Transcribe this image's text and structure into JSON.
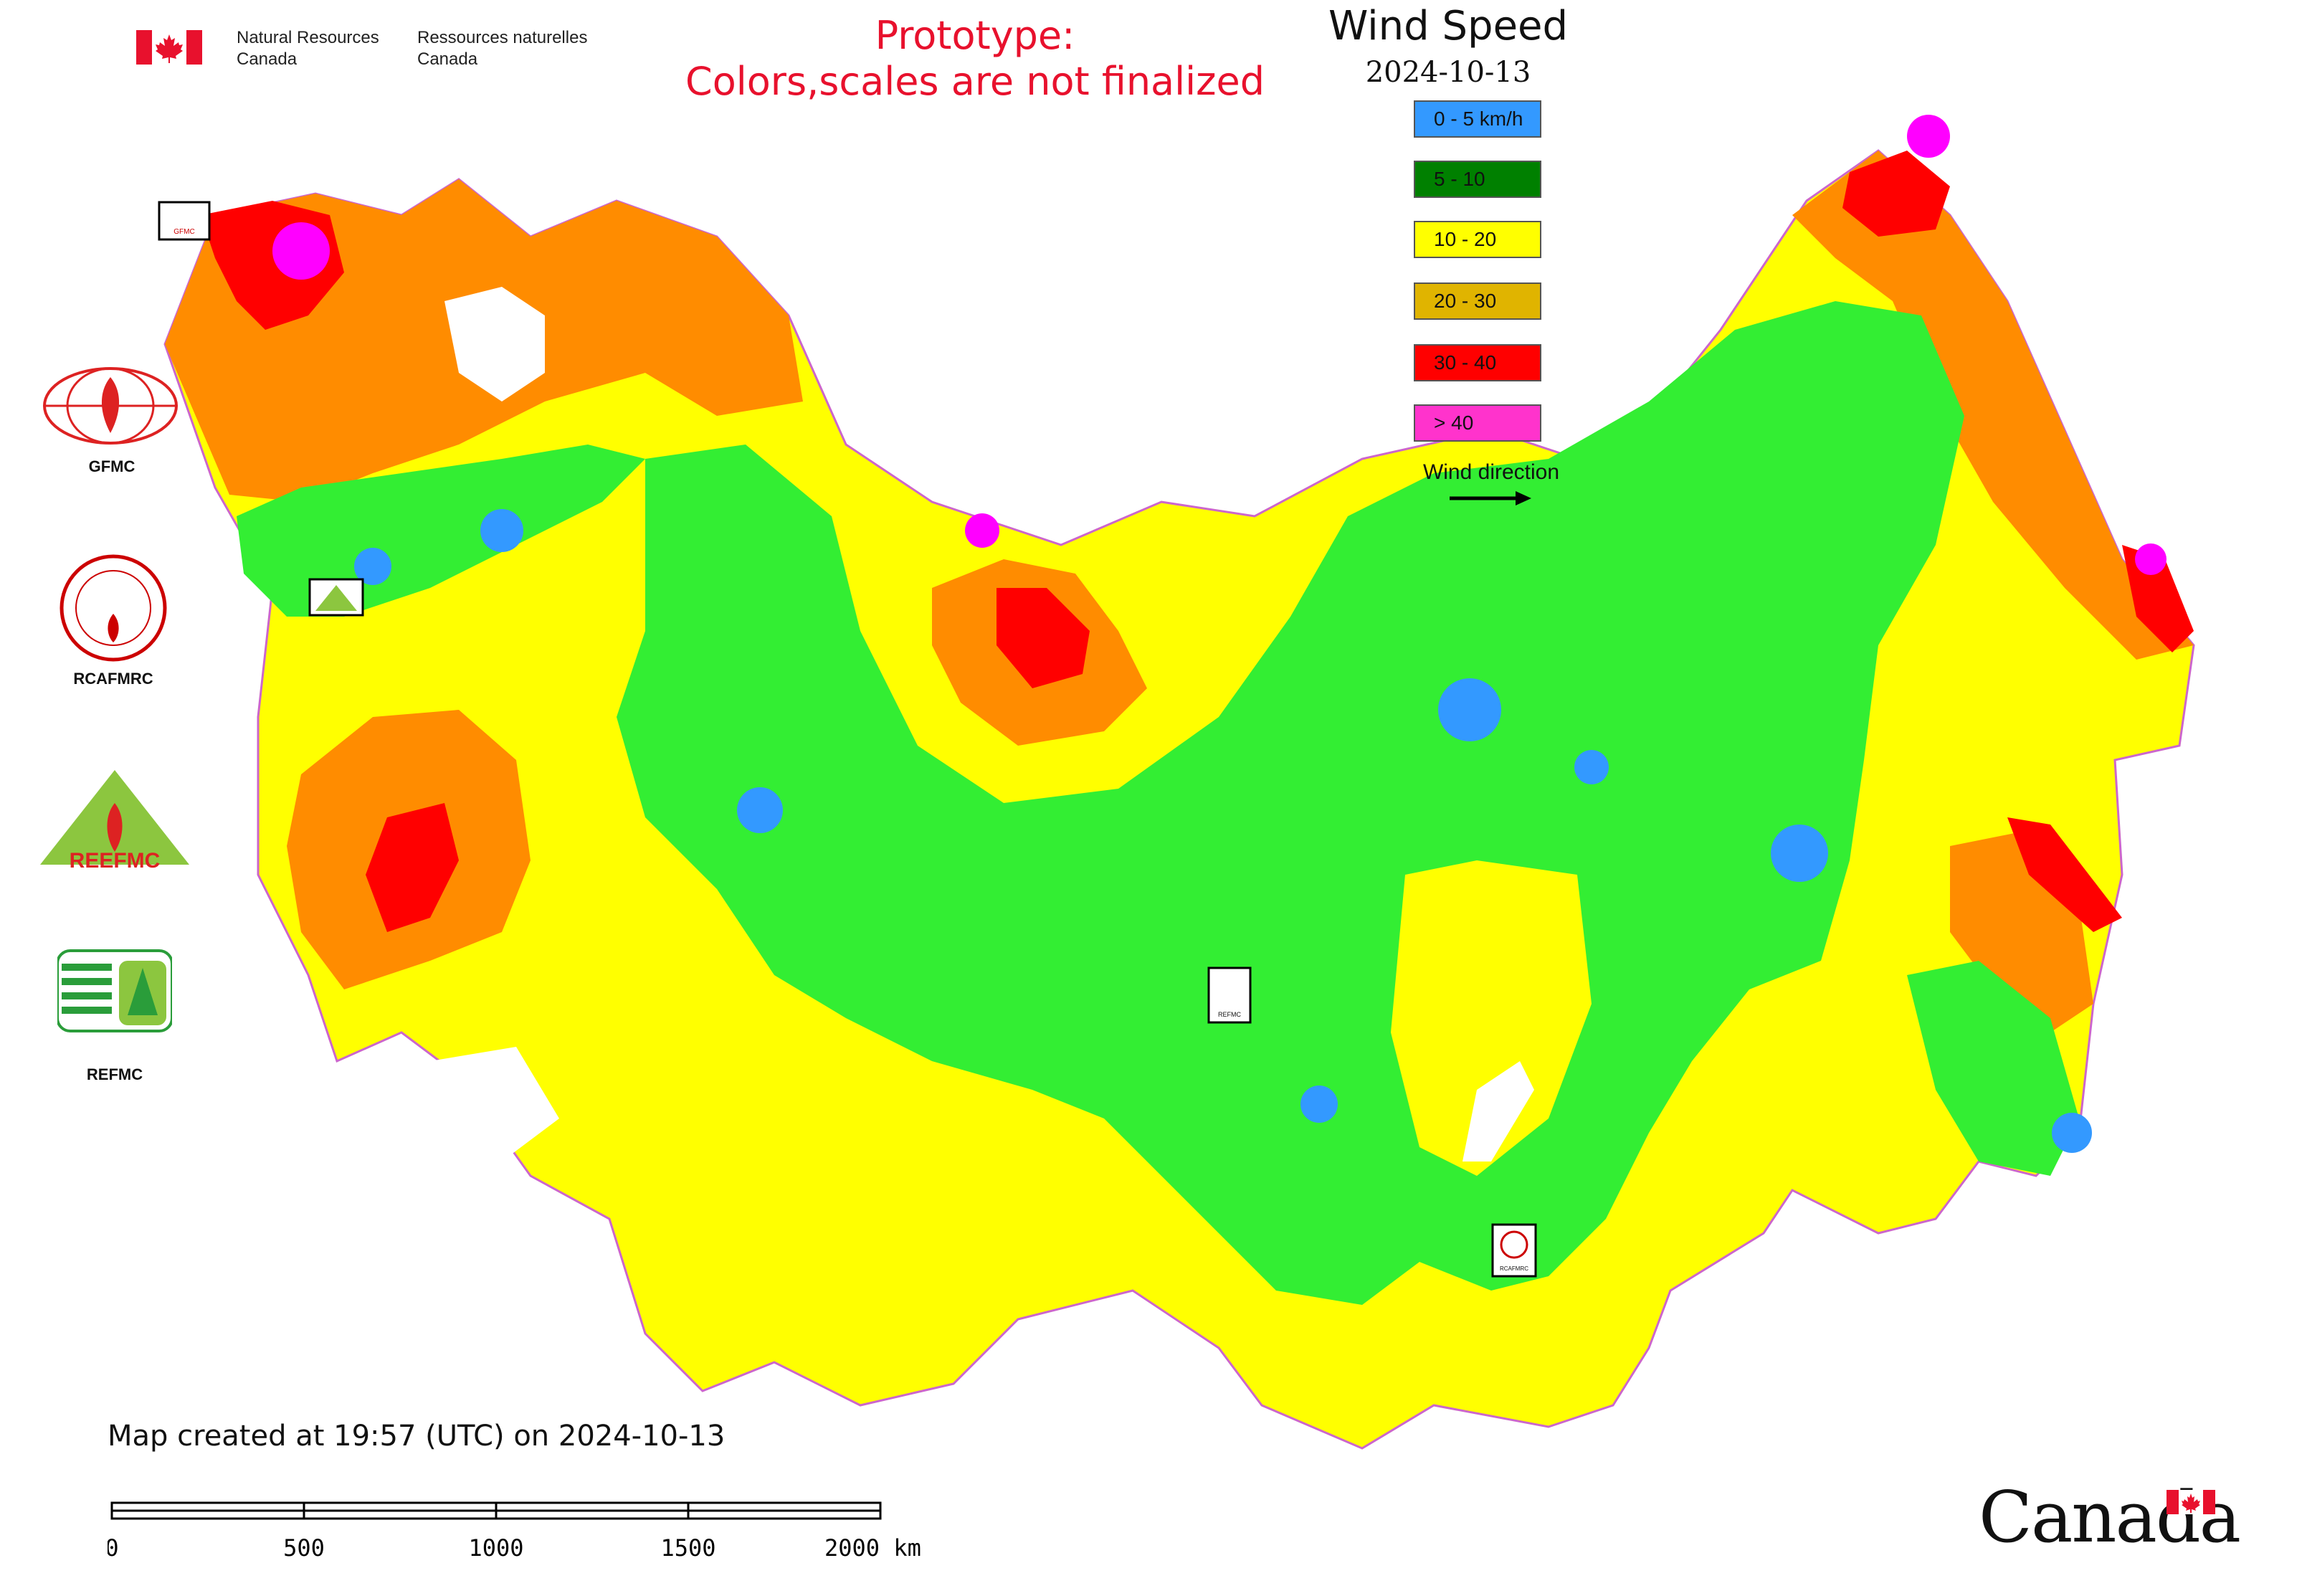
{
  "header": {
    "department_en_line1": "Natural Resources",
    "department_en_line2": "Canada",
    "department_fr_line1": "Ressources naturelles",
    "department_fr_line2": "Canada"
  },
  "prototype": {
    "line1": "Prototype:",
    "line2": "Colors,scales are not finalized"
  },
  "legend": {
    "title": "Wind Speed",
    "date": "2024-10-13",
    "items": [
      {
        "label": "0 - 5 km/h",
        "color": "#3399ff"
      },
      {
        "label": "5 - 10",
        "color": "#008000"
      },
      {
        "label": "10 - 20",
        "color": "#ffff00"
      },
      {
        "label": "20 - 30",
        "color": "#e0b400"
      },
      {
        "label": "30 - 40",
        "color": "#ff0000"
      },
      {
        "label": "> 40",
        "color": "#ff33cc"
      }
    ],
    "wind_direction_label": "Wind direction"
  },
  "map_colors": {
    "calm": "#3399ff",
    "light": "#33ee33",
    "moderate": "#ffff00",
    "fresh": "#ff8c00",
    "strong": "#ff0000",
    "gale": "#ff00ff",
    "border": "#cc66cc"
  },
  "logos": {
    "gfmc": "GFMC",
    "gfmc_small": "GFMC",
    "rcafmrc": "RCAFMRC",
    "rcafmrc_small": "RCAFMRC",
    "reefmc": "REEFMC",
    "refmc": "REFMC",
    "refmc_small": "REFMC"
  },
  "footer": {
    "created": "Map created at 19:57 (UTC) on 2024-10-13",
    "scale_ticks": [
      "0",
      "500",
      "1000",
      "1500",
      "2000 km"
    ],
    "wordmark": "Canada"
  }
}
